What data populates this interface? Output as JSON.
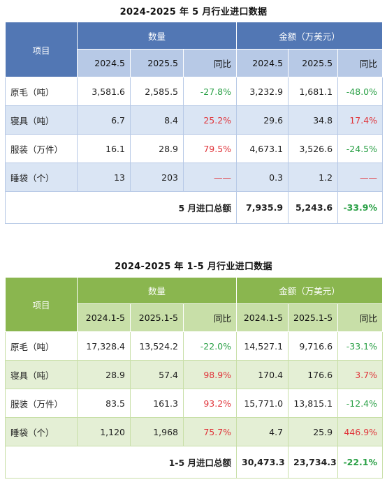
{
  "table1": {
    "title": "2024-2025 年 5 月行业进口数据",
    "item_header": "项目",
    "qty_header": "数量",
    "amt_header": "金额（万美元）",
    "sub_headers": [
      "2024.5",
      "2025.5",
      "同比",
      "2024.5",
      "2025.5",
      "同比"
    ],
    "rows": [
      {
        "item": "原毛（吨）",
        "qty_prev": "3,581.6",
        "qty_cur": "2,585.5",
        "qty_yoy": "-27.8%",
        "amt_prev": "3,232.9",
        "amt_cur": "1,681.1",
        "amt_yoy": "-48.0%"
      },
      {
        "item": "寝具（吨）",
        "qty_prev": "6.7",
        "qty_cur": "8.4",
        "qty_yoy": "25.2%",
        "amt_prev": "29.6",
        "amt_cur": "34.8",
        "amt_yoy": "17.4%"
      },
      {
        "item": "服装（万件）",
        "qty_prev": "16.1",
        "qty_cur": "28.9",
        "qty_yoy": "79.5%",
        "amt_prev": "4,673.1",
        "amt_cur": "3,526.6",
        "amt_yoy": "-24.5%"
      },
      {
        "item": "睡袋（个）",
        "qty_prev": "13",
        "qty_cur": "203",
        "qty_yoy": "——",
        "amt_prev": "0.3",
        "amt_cur": "1.2",
        "amt_yoy": "——"
      }
    ],
    "total": {
      "label": "5 月进口总额",
      "prev": "7,935.9",
      "cur": "5,243.6",
      "yoy": "-33.9%"
    }
  },
  "table2": {
    "title": "2024-2025 年 1-5 月行业进口数据",
    "item_header": "项目",
    "qty_header": "数量",
    "amt_header": "金额（万美元）",
    "sub_headers": [
      "2024.1-5",
      "2025.1-5",
      "同比",
      "2024.1-5",
      "2025.1-5",
      "同比"
    ],
    "rows": [
      {
        "item": "原毛（吨）",
        "qty_prev": "17,328.4",
        "qty_cur": "13,524.2",
        "qty_yoy": "-22.0%",
        "amt_prev": "14,527.1",
        "amt_cur": "9,716.6",
        "amt_yoy": "-33.1%"
      },
      {
        "item": "寝具（吨）",
        "qty_prev": "28.9",
        "qty_cur": "57.4",
        "qty_yoy": "98.9%",
        "amt_prev": "170.4",
        "amt_cur": "176.6",
        "amt_yoy": "3.7%"
      },
      {
        "item": "服装（万件）",
        "qty_prev": "83.5",
        "qty_cur": "161.3",
        "qty_yoy": "93.2%",
        "amt_prev": "15,771.0",
        "amt_cur": "13,815.1",
        "amt_yoy": "-12.4%"
      },
      {
        "item": "睡袋（个）",
        "qty_prev": "1,120",
        "qty_cur": "1,968",
        "qty_yoy": "75.7%",
        "amt_prev": "4.7",
        "amt_cur": "25.9",
        "amt_yoy": "446.9%"
      }
    ],
    "total": {
      "label": "1-5 月进口总额",
      "prev": "30,473.3",
      "cur": "23,734.3",
      "yoy": "-22.1%"
    }
  },
  "colors": {
    "table1_header": "#5277b4",
    "table1_subheader": "#b7c9e6",
    "table1_stripe": "#dae5f4",
    "table2_header": "#8ab64f",
    "table2_subheader": "#c8dfa8",
    "table2_stripe": "#e4efd5",
    "negative": "#2aa046",
    "positive": "#e0343a"
  }
}
